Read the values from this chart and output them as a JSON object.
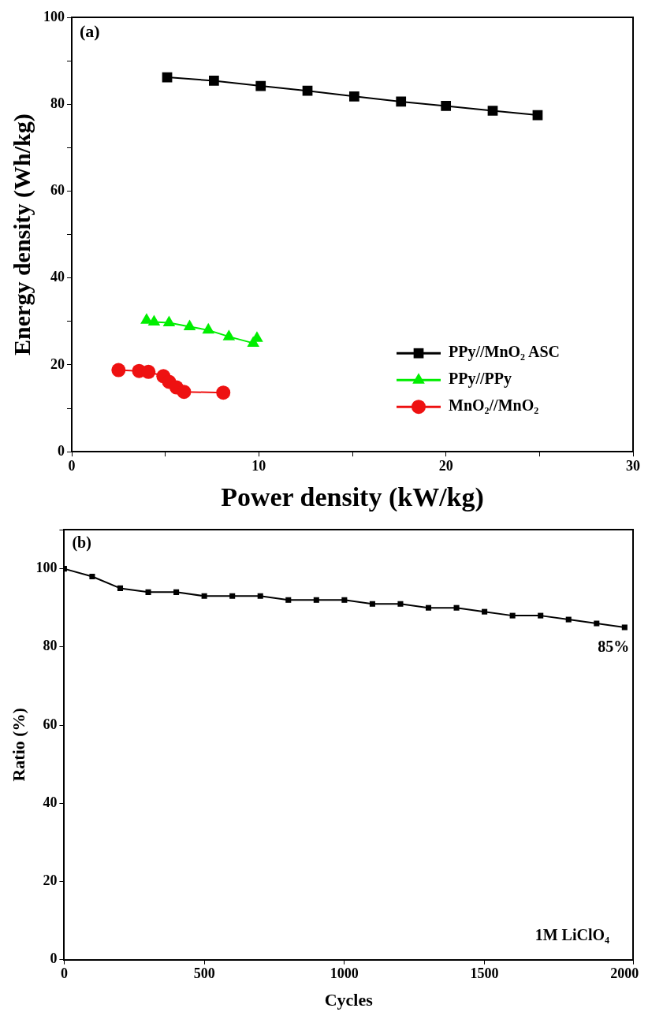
{
  "chart_data": [
    {
      "type": "line",
      "xlabel": "Power density (kW/kg)",
      "ylabel": "Energy density (Wh/kg)",
      "xlim": [
        0,
        30
      ],
      "xticks": [
        0,
        10,
        20,
        30
      ],
      "ylim": [
        0,
        100
      ],
      "yticks": [
        0,
        20,
        40,
        60,
        80,
        100
      ],
      "legend": "bottom right",
      "grid": false,
      "annotations": [
        "(a)"
      ],
      "series": [
        {
          "name": "PPy//MnO₂ ASC",
          "color": "#000000",
          "marker": "square",
          "x": [
            5.1,
            7.6,
            10.1,
            12.6,
            15.1,
            17.6,
            20,
            22.5,
            24.9
          ],
          "values": [
            86.2,
            85.4,
            84.2,
            83.1,
            81.8,
            80.6,
            79.6,
            78.5,
            77.5
          ]
        },
        {
          "name": "PPy//PPy",
          "color": "#00ee00",
          "marker": "triangle",
          "x": [
            4.0,
            4.4,
            5.2,
            6.3,
            7.3,
            8.4,
            9.7,
            9.9
          ],
          "values": [
            30.3,
            29.9,
            29.7,
            28.8,
            28.0,
            26.5,
            25.0,
            26.1
          ]
        },
        {
          "name": "MnO₂//MnO₂",
          "color": "#ee1111",
          "marker": "circle",
          "x": [
            2.5,
            3.6,
            4.1,
            4.9,
            5.2,
            5.6,
            6.0,
            8.1
          ],
          "values": [
            18.8,
            18.6,
            18.4,
            17.4,
            16.1,
            14.8,
            13.8,
            13.6
          ]
        }
      ]
    },
    {
      "type": "line",
      "xlabel": "Cycles",
      "ylabel": "Ratio (%)",
      "xlim": [
        0,
        2030
      ],
      "xticks": [
        0,
        500,
        1000,
        1500,
        2000
      ],
      "ylim": [
        0,
        110
      ],
      "yticks": [
        0,
        20,
        40,
        60,
        80,
        100
      ],
      "legend": false,
      "grid": false,
      "marker": "square",
      "annotations": [
        "(b)",
        "1M LiClO₄",
        {
          "text": "85%",
          "x": 2000,
          "y": 85
        }
      ],
      "series": [
        {
          "color": "#000000",
          "x": [
            0,
            100,
            200,
            300,
            400,
            500,
            600,
            700,
            800,
            900,
            1000,
            1100,
            1200,
            1300,
            1400,
            1500,
            1600,
            1700,
            1800,
            1900,
            2000
          ],
          "values": [
            100,
            98,
            95,
            94,
            94,
            93,
            93,
            93,
            92,
            92,
            92,
            91,
            91,
            90,
            90,
            89,
            88,
            88,
            87,
            86,
            85
          ]
        }
      ]
    }
  ]
}
